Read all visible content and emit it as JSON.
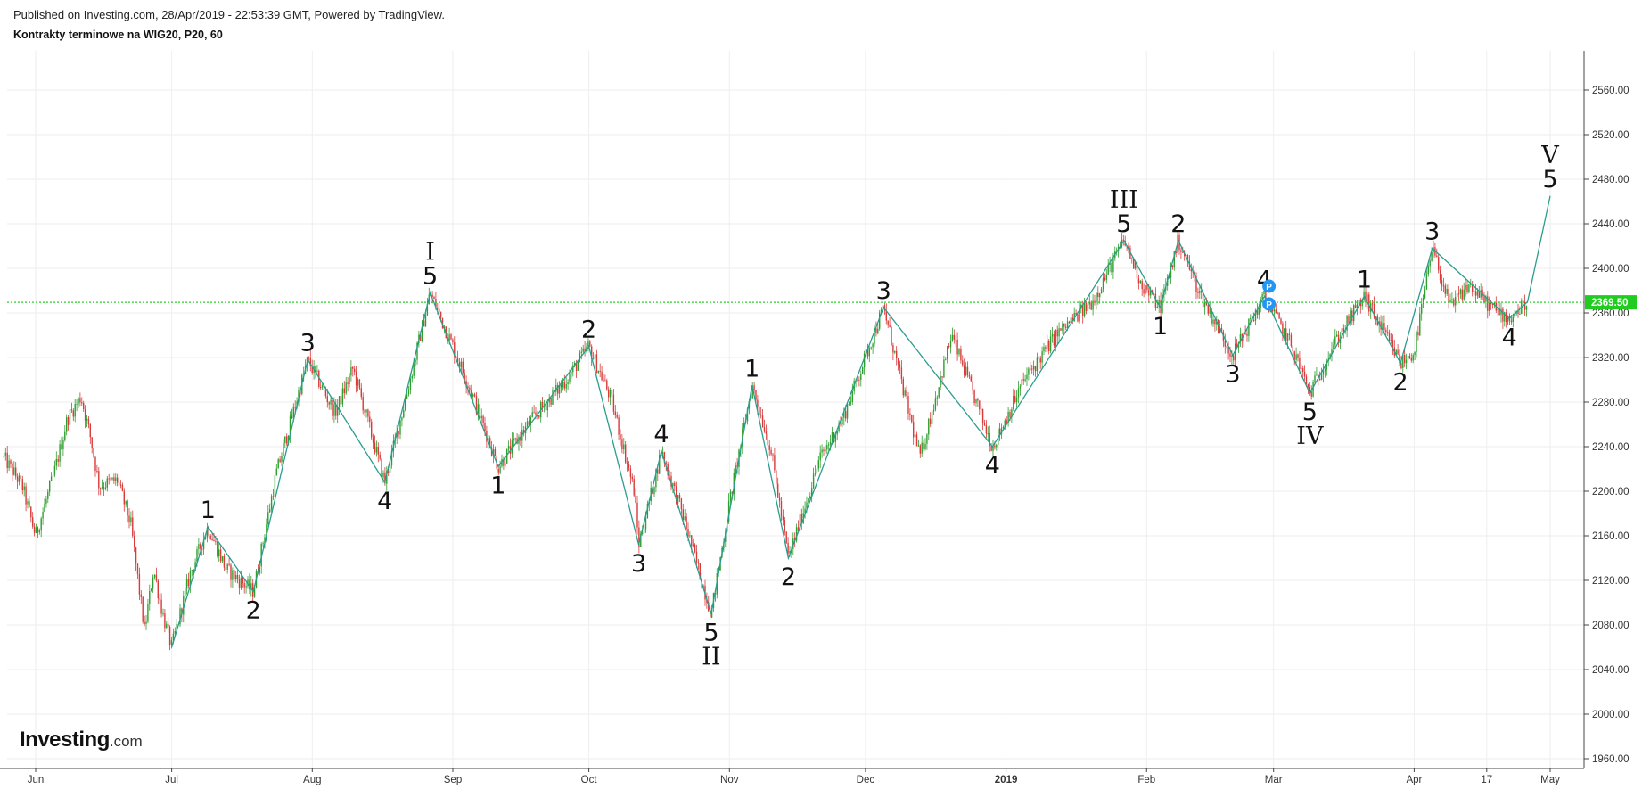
{
  "header": {
    "published": "Published on Investing.com, 28/Apr/2019 - 22:53:39 GMT, Powered by TradingView.",
    "symbol": "Kontrakty terminowe na WIG20, P20, 60"
  },
  "logo": {
    "brand": "Investing",
    "suffix": ".com"
  },
  "colors": {
    "wave_line": "#2a9d8f",
    "bull_candle": "#2e9e2e",
    "bear_candle": "#d93a3a",
    "last_price_line": "#2ecc2e",
    "last_price_bg": "#1fcc1f",
    "marker": "#2196f3",
    "grid": "#eeeeee"
  },
  "chart_data": {
    "type": "line",
    "title": "Kontrakty terminowe na WIG20, P20, 60",
    "xlabel": "",
    "ylabel": "",
    "ylim": [
      1960,
      2590
    ],
    "grid": true,
    "legend": "none",
    "y_ticks": [
      "2560.00",
      "2520.00",
      "2480.00",
      "2440.00",
      "2400.00",
      "2360.00",
      "2320.00",
      "2280.00",
      "2240.00",
      "2200.00",
      "2160.00",
      "2120.00",
      "2080.00",
      "2040.00",
      "2000.00",
      "1960.00"
    ],
    "x_ticks": [
      {
        "label": "Jun",
        "x": "2018-06-01"
      },
      {
        "label": "Jul",
        "x": "2018-07-01"
      },
      {
        "label": "Aug",
        "x": "2018-08-01"
      },
      {
        "label": "Sep",
        "x": "2018-09-01"
      },
      {
        "label": "Oct",
        "x": "2018-10-01"
      },
      {
        "label": "Nov",
        "x": "2018-11-01"
      },
      {
        "label": "Dec",
        "x": "2018-12-01"
      },
      {
        "label": "2019",
        "x": "2019-01-01",
        "bold": true
      },
      {
        "label": "Feb",
        "x": "2019-02-01"
      },
      {
        "label": "Mar",
        "x": "2019-03-01"
      },
      {
        "label": "Apr",
        "x": "2019-04-01"
      },
      {
        "label": "17",
        "x": "2019-04-17"
      },
      {
        "label": "May",
        "x": "2019-05-01"
      }
    ],
    "last_price": {
      "label": "2369.50",
      "value": 2369.5
    },
    "price_path": [
      {
        "x": "2018-05-25",
        "y": 2230
      },
      {
        "x": "2018-05-29",
        "y": 2205
      },
      {
        "x": "2018-06-01",
        "y": 2160
      },
      {
        "x": "2018-06-05",
        "y": 2215
      },
      {
        "x": "2018-06-08",
        "y": 2265
      },
      {
        "x": "2018-06-11",
        "y": 2285
      },
      {
        "x": "2018-06-13",
        "y": 2250
      },
      {
        "x": "2018-06-15",
        "y": 2205
      },
      {
        "x": "2018-06-19",
        "y": 2210
      },
      {
        "x": "2018-06-22",
        "y": 2170
      },
      {
        "x": "2018-06-25",
        "y": 2075
      },
      {
        "x": "2018-06-27",
        "y": 2130
      },
      {
        "x": "2018-06-29",
        "y": 2090
      },
      {
        "x": "2018-07-01",
        "y": 2060
      },
      {
        "x": "2018-07-05",
        "y": 2125
      },
      {
        "x": "2018-07-09",
        "y": 2168
      },
      {
        "x": "2018-07-13",
        "y": 2130
      },
      {
        "x": "2018-07-19",
        "y": 2110
      },
      {
        "x": "2018-07-24",
        "y": 2215
      },
      {
        "x": "2018-07-31",
        "y": 2318
      },
      {
        "x": "2018-08-06",
        "y": 2270
      },
      {
        "x": "2018-08-10",
        "y": 2310
      },
      {
        "x": "2018-08-17",
        "y": 2208
      },
      {
        "x": "2018-08-22",
        "y": 2290
      },
      {
        "x": "2018-08-27",
        "y": 2378
      },
      {
        "x": "2018-09-01",
        "y": 2330
      },
      {
        "x": "2018-09-05",
        "y": 2290
      },
      {
        "x": "2018-09-11",
        "y": 2222
      },
      {
        "x": "2018-09-18",
        "y": 2262
      },
      {
        "x": "2018-09-26",
        "y": 2300
      },
      {
        "x": "2018-10-01",
        "y": 2330
      },
      {
        "x": "2018-10-06",
        "y": 2282
      },
      {
        "x": "2018-10-11",
        "y": 2200
      },
      {
        "x": "2018-10-12",
        "y": 2152
      },
      {
        "x": "2018-10-17",
        "y": 2236
      },
      {
        "x": "2018-10-22",
        "y": 2175
      },
      {
        "x": "2018-10-28",
        "y": 2090
      },
      {
        "x": "2018-11-01",
        "y": 2190
      },
      {
        "x": "2018-11-06",
        "y": 2295
      },
      {
        "x": "2018-11-10",
        "y": 2240
      },
      {
        "x": "2018-11-14",
        "y": 2140
      },
      {
        "x": "2018-11-21",
        "y": 2230
      },
      {
        "x": "2018-11-26",
        "y": 2265
      },
      {
        "x": "2018-12-05",
        "y": 2365
      },
      {
        "x": "2018-12-10",
        "y": 2280
      },
      {
        "x": "2018-12-13",
        "y": 2230
      },
      {
        "x": "2018-12-20",
        "y": 2340
      },
      {
        "x": "2018-12-29",
        "y": 2240
      },
      {
        "x": "2019-01-05",
        "y": 2300
      },
      {
        "x": "2019-01-12",
        "y": 2340
      },
      {
        "x": "2019-01-20",
        "y": 2370
      },
      {
        "x": "2019-01-27",
        "y": 2425
      },
      {
        "x": "2019-01-31",
        "y": 2385
      },
      {
        "x": "2019-02-04",
        "y": 2365
      },
      {
        "x": "2019-02-08",
        "y": 2425
      },
      {
        "x": "2019-02-13",
        "y": 2375
      },
      {
        "x": "2019-02-20",
        "y": 2322
      },
      {
        "x": "2019-02-27",
        "y": 2375
      },
      {
        "x": "2019-03-05",
        "y": 2330
      },
      {
        "x": "2019-03-09",
        "y": 2288
      },
      {
        "x": "2019-03-14",
        "y": 2330
      },
      {
        "x": "2019-03-21",
        "y": 2375
      },
      {
        "x": "2019-03-25",
        "y": 2345
      },
      {
        "x": "2019-03-29",
        "y": 2315
      },
      {
        "x": "2019-04-01",
        "y": 2325
      },
      {
        "x": "2019-04-05",
        "y": 2418
      },
      {
        "x": "2019-04-09",
        "y": 2365
      },
      {
        "x": "2019-04-13",
        "y": 2385
      },
      {
        "x": "2019-04-18",
        "y": 2365
      },
      {
        "x": "2019-04-22",
        "y": 2355
      },
      {
        "x": "2019-04-26",
        "y": 2370
      }
    ],
    "wave_path": [
      {
        "x": "2018-07-01",
        "y": 2060
      },
      {
        "x": "2018-07-09",
        "y": 2168
      },
      {
        "x": "2018-07-19",
        "y": 2110
      },
      {
        "x": "2018-07-31",
        "y": 2318
      },
      {
        "x": "2018-08-17",
        "y": 2208
      },
      {
        "x": "2018-08-27",
        "y": 2378
      },
      {
        "x": "2018-09-11",
        "y": 2222
      },
      {
        "x": "2018-10-01",
        "y": 2330
      },
      {
        "x": "2018-10-12",
        "y": 2152
      },
      {
        "x": "2018-10-17",
        "y": 2236
      },
      {
        "x": "2018-10-28",
        "y": 2090
      },
      {
        "x": "2018-11-06",
        "y": 2295
      },
      {
        "x": "2018-11-14",
        "y": 2140
      },
      {
        "x": "2018-12-05",
        "y": 2365
      },
      {
        "x": "2018-12-29",
        "y": 2240
      },
      {
        "x": "2019-01-27",
        "y": 2425
      },
      {
        "x": "2019-02-04",
        "y": 2365
      },
      {
        "x": "2019-02-08",
        "y": 2425
      },
      {
        "x": "2019-02-20",
        "y": 2322
      },
      {
        "x": "2019-02-27",
        "y": 2375
      },
      {
        "x": "2019-03-09",
        "y": 2288
      },
      {
        "x": "2019-03-21",
        "y": 2375
      },
      {
        "x": "2019-03-29",
        "y": 2315
      },
      {
        "x": "2019-04-05",
        "y": 2418
      },
      {
        "x": "2019-04-22",
        "y": 2355
      },
      {
        "x": "2019-04-26",
        "y": 2370
      },
      {
        "x": "2019-05-01",
        "y": 2465
      }
    ],
    "annotations": [
      {
        "text": "1",
        "x": "2018-07-09",
        "y": 2168,
        "pos": "above"
      },
      {
        "text": "2",
        "x": "2018-07-19",
        "y": 2110,
        "pos": "below"
      },
      {
        "text": "3",
        "x": "2018-07-31",
        "y": 2318,
        "pos": "above"
      },
      {
        "text": "4",
        "x": "2018-08-17",
        "y": 2208,
        "pos": "below"
      },
      {
        "text": "5",
        "x": "2018-08-27",
        "y": 2378,
        "pos": "above"
      },
      {
        "text": "I",
        "x": "2018-08-27",
        "y": 2378,
        "pos": "above2",
        "roman": true
      },
      {
        "text": "1",
        "x": "2018-09-11",
        "y": 2222,
        "pos": "below"
      },
      {
        "text": "2",
        "x": "2018-10-01",
        "y": 2330,
        "pos": "above"
      },
      {
        "text": "3",
        "x": "2018-10-12",
        "y": 2152,
        "pos": "below"
      },
      {
        "text": "4",
        "x": "2018-10-17",
        "y": 2236,
        "pos": "above"
      },
      {
        "text": "5",
        "x": "2018-10-28",
        "y": 2090,
        "pos": "below"
      },
      {
        "text": "II",
        "x": "2018-10-28",
        "y": 2090,
        "pos": "below2",
        "roman": true
      },
      {
        "text": "1",
        "x": "2018-11-06",
        "y": 2295,
        "pos": "above"
      },
      {
        "text": "2",
        "x": "2018-11-14",
        "y": 2140,
        "pos": "below"
      },
      {
        "text": "3",
        "x": "2018-12-05",
        "y": 2365,
        "pos": "above"
      },
      {
        "text": "4",
        "x": "2018-12-29",
        "y": 2240,
        "pos": "below"
      },
      {
        "text": "5",
        "x": "2019-01-27",
        "y": 2425,
        "pos": "above"
      },
      {
        "text": "III",
        "x": "2019-01-27",
        "y": 2425,
        "pos": "above2",
        "roman": true
      },
      {
        "text": "1",
        "x": "2019-02-04",
        "y": 2365,
        "pos": "below"
      },
      {
        "text": "2",
        "x": "2019-02-08",
        "y": 2425,
        "pos": "above"
      },
      {
        "text": "3",
        "x": "2019-02-20",
        "y": 2322,
        "pos": "below"
      },
      {
        "text": "4",
        "x": "2019-02-27",
        "y": 2375,
        "pos": "above"
      },
      {
        "text": "5",
        "x": "2019-03-09",
        "y": 2288,
        "pos": "below"
      },
      {
        "text": "IV",
        "x": "2019-03-09",
        "y": 2288,
        "pos": "below2",
        "roman": true
      },
      {
        "text": "1",
        "x": "2019-03-21",
        "y": 2375,
        "pos": "above"
      },
      {
        "text": "2",
        "x": "2019-03-29",
        "y": 2315,
        "pos": "below"
      },
      {
        "text": "3",
        "x": "2019-04-05",
        "y": 2418,
        "pos": "above"
      },
      {
        "text": "4",
        "x": "2019-04-22",
        "y": 2355,
        "pos": "below"
      },
      {
        "text": "5",
        "x": "2019-05-01",
        "y": 2465,
        "pos": "above"
      },
      {
        "text": "V",
        "x": "2019-05-01",
        "y": 2465,
        "pos": "above2",
        "roman": true
      }
    ],
    "markers": [
      {
        "text": "P",
        "x": "2019-02-28",
        "y": 2384
      },
      {
        "text": "P",
        "x": "2019-02-28",
        "y": 2368
      }
    ]
  }
}
